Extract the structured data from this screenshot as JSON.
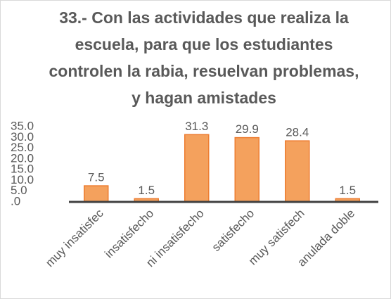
{
  "chart_data": {
    "type": "bar",
    "title": "33.- Con las actividades que realiza la escuela, para que los estudiantes controlen la rabia, resuelvan problemas, y hagan amistades",
    "categories": [
      "muy insatisfec",
      "insatisfecho",
      "ni insatisfecho",
      "satisfecho",
      "muy satisfech",
      "anulada doble"
    ],
    "values": [
      7.5,
      1.5,
      31.3,
      29.9,
      28.4,
      1.5
    ],
    "color": "#f4a15d",
    "ylim": [
      0,
      35
    ],
    "yticks": [
      {
        "value": 0,
        "label": ".0"
      },
      {
        "value": 5,
        "label": "5.0"
      },
      {
        "value": 10,
        "label": "10.0"
      },
      {
        "value": 15,
        "label": "15.0"
      },
      {
        "value": 20,
        "label": "20.0"
      },
      {
        "value": 25,
        "label": "25.0"
      },
      {
        "value": 30,
        "label": "30.0"
      },
      {
        "value": 35,
        "label": "35.0"
      }
    ],
    "grid": false
  }
}
